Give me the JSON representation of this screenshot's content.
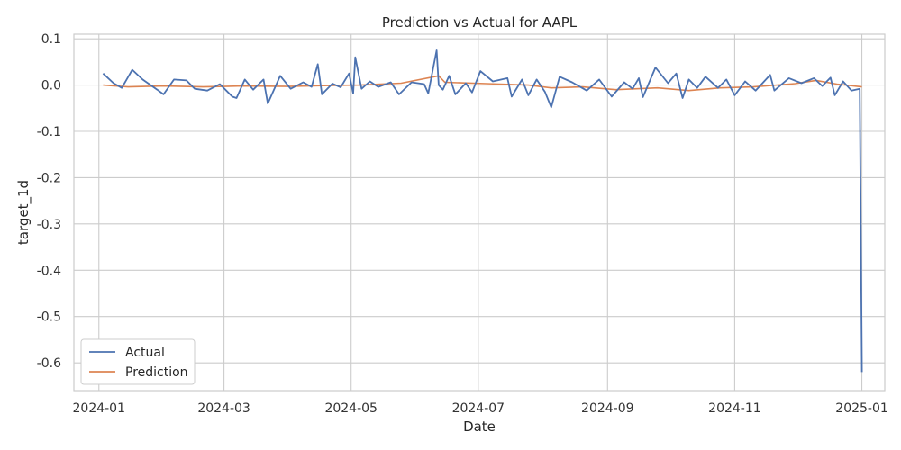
{
  "chart_data": {
    "type": "line",
    "title": "Prediction vs Actual for AAPL",
    "xlabel": "Date",
    "ylabel": "target_1d",
    "grid": true,
    "legend_position": "lower-left",
    "xlim": [
      "2023-12-20",
      "2025-01-12"
    ],
    "ylim": [
      -0.66,
      0.11
    ],
    "x_ticks": [
      "2024-01",
      "2024-03",
      "2024-05",
      "2024-07",
      "2024-09",
      "2024-11",
      "2025-01"
    ],
    "y_ticks": [
      0.1,
      0.0,
      -0.1,
      -0.2,
      -0.3,
      -0.4,
      -0.5,
      -0.6
    ],
    "colors": {
      "Actual": "#4c72b0",
      "Prediction": "#dd8452"
    },
    "series": [
      {
        "name": "Actual",
        "color": "#4c72b0",
        "points": [
          [
            "2024-01-03",
            0.025
          ],
          [
            "2024-01-08",
            0.004
          ],
          [
            "2024-01-12",
            -0.006
          ],
          [
            "2024-01-17",
            0.033
          ],
          [
            "2024-01-22",
            0.012
          ],
          [
            "2024-01-29",
            -0.01
          ],
          [
            "2024-02-01",
            -0.02
          ],
          [
            "2024-02-06",
            0.012
          ],
          [
            "2024-02-12",
            0.01
          ],
          [
            "2024-02-16",
            -0.008
          ],
          [
            "2024-02-22",
            -0.012
          ],
          [
            "2024-02-28",
            0.002
          ],
          [
            "2024-03-05",
            -0.025
          ],
          [
            "2024-03-07",
            -0.028
          ],
          [
            "2024-03-11",
            0.012
          ],
          [
            "2024-03-15",
            -0.01
          ],
          [
            "2024-03-20",
            0.012
          ],
          [
            "2024-03-22",
            -0.04
          ],
          [
            "2024-03-28",
            0.02
          ],
          [
            "2024-04-02",
            -0.008
          ],
          [
            "2024-04-08",
            0.006
          ],
          [
            "2024-04-12",
            -0.004
          ],
          [
            "2024-04-15",
            0.045
          ],
          [
            "2024-04-17",
            -0.02
          ],
          [
            "2024-04-22",
            0.003
          ],
          [
            "2024-04-26",
            -0.005
          ],
          [
            "2024-04-30",
            0.025
          ],
          [
            "2024-05-02",
            -0.018
          ],
          [
            "2024-05-03",
            0.06
          ],
          [
            "2024-05-06",
            -0.008
          ],
          [
            "2024-05-10",
            0.008
          ],
          [
            "2024-05-14",
            -0.004
          ],
          [
            "2024-05-20",
            0.006
          ],
          [
            "2024-05-24",
            -0.02
          ],
          [
            "2024-05-30",
            0.006
          ],
          [
            "2024-06-05",
            0.002
          ],
          [
            "2024-06-07",
            -0.018
          ],
          [
            "2024-06-11",
            0.075
          ],
          [
            "2024-06-12",
            0.0
          ],
          [
            "2024-06-14",
            -0.01
          ],
          [
            "2024-06-17",
            0.02
          ],
          [
            "2024-06-20",
            -0.02
          ],
          [
            "2024-06-25",
            0.004
          ],
          [
            "2024-06-28",
            -0.016
          ],
          [
            "2024-07-02",
            0.03
          ],
          [
            "2024-07-08",
            0.008
          ],
          [
            "2024-07-15",
            0.015
          ],
          [
            "2024-07-17",
            -0.025
          ],
          [
            "2024-07-22",
            0.012
          ],
          [
            "2024-07-25",
            -0.022
          ],
          [
            "2024-07-29",
            0.012
          ],
          [
            "2024-08-02",
            -0.015
          ],
          [
            "2024-08-05",
            -0.048
          ],
          [
            "2024-08-09",
            0.018
          ],
          [
            "2024-08-15",
            0.006
          ],
          [
            "2024-08-22",
            -0.012
          ],
          [
            "2024-08-28",
            0.012
          ],
          [
            "2024-09-03",
            -0.025
          ],
          [
            "2024-09-09",
            0.006
          ],
          [
            "2024-09-13",
            -0.008
          ],
          [
            "2024-09-16",
            0.015
          ],
          [
            "2024-09-18",
            -0.026
          ],
          [
            "2024-09-24",
            0.038
          ],
          [
            "2024-09-30",
            0.004
          ],
          [
            "2024-10-04",
            0.025
          ],
          [
            "2024-10-07",
            -0.028
          ],
          [
            "2024-10-10",
            0.012
          ],
          [
            "2024-10-14",
            -0.006
          ],
          [
            "2024-10-18",
            0.018
          ],
          [
            "2024-10-24",
            -0.006
          ],
          [
            "2024-10-28",
            0.012
          ],
          [
            "2024-11-01",
            -0.022
          ],
          [
            "2024-11-06",
            0.008
          ],
          [
            "2024-11-11",
            -0.012
          ],
          [
            "2024-11-18",
            0.022
          ],
          [
            "2024-11-20",
            -0.012
          ],
          [
            "2024-11-27",
            0.015
          ],
          [
            "2024-12-03",
            0.004
          ],
          [
            "2024-12-09",
            0.015
          ],
          [
            "2024-12-13",
            -0.002
          ],
          [
            "2024-12-17",
            0.016
          ],
          [
            "2024-12-19",
            -0.022
          ],
          [
            "2024-12-23",
            0.008
          ],
          [
            "2024-12-27",
            -0.012
          ],
          [
            "2024-12-31",
            -0.008
          ],
          [
            "2025-01-01",
            -0.62
          ]
        ]
      },
      {
        "name": "Prediction",
        "color": "#dd8452",
        "points": [
          [
            "2024-01-03",
            0.0
          ],
          [
            "2024-01-15",
            -0.004
          ],
          [
            "2024-02-01",
            -0.002
          ],
          [
            "2024-02-20",
            -0.004
          ],
          [
            "2024-03-10",
            -0.002
          ],
          [
            "2024-04-01",
            -0.003
          ],
          [
            "2024-04-20",
            -0.001
          ],
          [
            "2024-05-05",
            0.0
          ],
          [
            "2024-05-25",
            0.004
          ],
          [
            "2024-06-12",
            0.02
          ],
          [
            "2024-06-15",
            0.006
          ],
          [
            "2024-07-05",
            0.003
          ],
          [
            "2024-07-25",
            0.0
          ],
          [
            "2024-08-05",
            -0.006
          ],
          [
            "2024-08-20",
            -0.004
          ],
          [
            "2024-09-05",
            -0.01
          ],
          [
            "2024-09-25",
            -0.006
          ],
          [
            "2024-10-10",
            -0.012
          ],
          [
            "2024-10-25",
            -0.006
          ],
          [
            "2024-11-10",
            -0.004
          ],
          [
            "2024-11-30",
            0.003
          ],
          [
            "2024-12-10",
            0.01
          ],
          [
            "2024-12-20",
            0.002
          ],
          [
            "2025-01-01",
            -0.004
          ]
        ]
      }
    ]
  }
}
